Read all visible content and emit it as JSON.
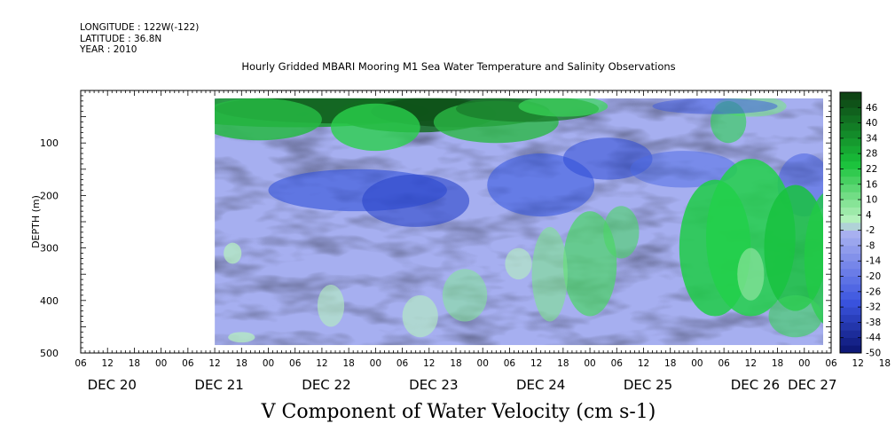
{
  "header": {
    "longitude": "LONGITUDE : 122W(-122)",
    "latitude": "LATITUDE : 36.8N",
    "year": "YEAR : 2010"
  },
  "chart_data": {
    "type": "heatmap",
    "title": "Hourly Gridded MBARI Mooring M1 Sea Water Temperature and Salinity Observations",
    "xlabel": "V Component of Water Velocity (cm s-1)",
    "ylabel": "DEPTH (m)",
    "ylim": [
      500,
      0
    ],
    "yticks": [
      100,
      200,
      300,
      400,
      500
    ],
    "y_data_range": [
      15,
      485
    ],
    "x_start": "DEC 19 06:00",
    "x_data_start": "DEC 20 12:00",
    "x_end": "DEC 27 06:00",
    "hour_tick_labels": [
      "06",
      "12",
      "18",
      "00",
      "06",
      "12",
      "18",
      "00",
      "06",
      "12",
      "18",
      "00",
      "06",
      "12",
      "18",
      "00",
      "06",
      "12",
      "18",
      "00",
      "06",
      "12",
      "18",
      "00",
      "06",
      "12",
      "18",
      "00",
      "06",
      "12",
      "18",
      "00",
      "06"
    ],
    "date_labels": [
      "DEC 20",
      "DEC 21",
      "DEC 22",
      "DEC 23",
      "DEC 24",
      "DEC 25",
      "DEC 26",
      "DEC 27"
    ],
    "colorbar_labels": [
      "46",
      "40",
      "34",
      "28",
      "22",
      "16",
      "10",
      "4",
      "-2",
      "-8",
      "-14",
      "-20",
      "-26",
      "-32",
      "-38",
      "-44",
      "-50"
    ],
    "colorbar_range": [
      -50,
      52
    ],
    "colorbar_step": 3,
    "colors": {
      "positive_max": "#0d3d12",
      "positive_mid": "#18c23a",
      "near_zero": "#b6f2be",
      "negative_near": "#aab2f0",
      "negative_mid": "#3a54e0",
      "negative_max": "#0a1470"
    }
  }
}
